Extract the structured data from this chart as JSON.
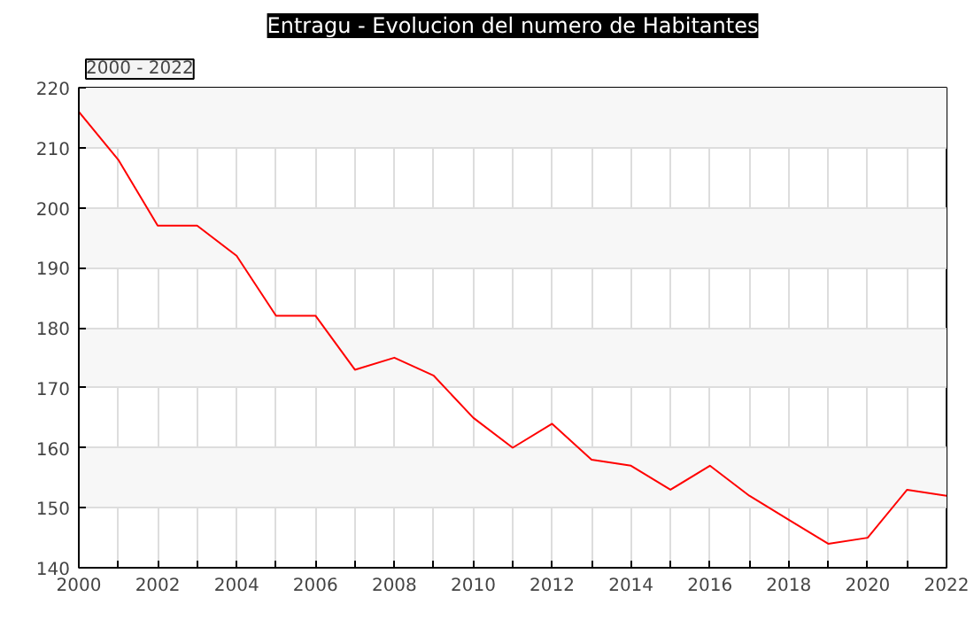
{
  "chart_data": {
    "type": "line",
    "title": "Entragu - Evolucion del numero de Habitantes",
    "annotations": [
      "2000 - 2022"
    ],
    "x": [
      2000,
      2001,
      2002,
      2003,
      2004,
      2005,
      2006,
      2007,
      2008,
      2009,
      2010,
      2011,
      2012,
      2013,
      2014,
      2015,
      2016,
      2017,
      2018,
      2019,
      2020,
      2021,
      2022
    ],
    "series": [
      {
        "color": "#ff0000",
        "values": [
          216,
          208,
          197,
          197,
          192,
          182,
          182,
          173,
          175,
          172,
          165,
          160,
          164,
          158,
          157,
          153,
          157,
          152,
          148,
          144,
          145,
          153,
          152
        ]
      }
    ],
    "xlim": [
      2000,
      2022
    ],
    "ylim": [
      140,
      220
    ],
    "xticks": [
      2000,
      {
        "value": 2001,
        "label": null
      },
      2002,
      {
        "value": 2003,
        "label": null
      },
      2004,
      {
        "value": 2005,
        "label": null
      },
      2006,
      {
        "value": 2007,
        "label": null
      },
      2008,
      {
        "value": 2009,
        "label": null
      },
      2010,
      {
        "value": 2011,
        "label": null
      },
      2012,
      {
        "value": 2013,
        "label": null
      },
      2014,
      {
        "value": 2015,
        "label": null
      },
      2016,
      {
        "value": 2017,
        "label": null
      },
      2018,
      {
        "value": 2019,
        "label": null
      },
      2020,
      {
        "value": 2021,
        "label": null
      },
      2022
    ],
    "yticks": [
      140,
      150,
      160,
      170,
      180,
      190,
      200,
      210,
      220
    ],
    "grid": true,
    "marker": "none",
    "line_style": "solid"
  }
}
